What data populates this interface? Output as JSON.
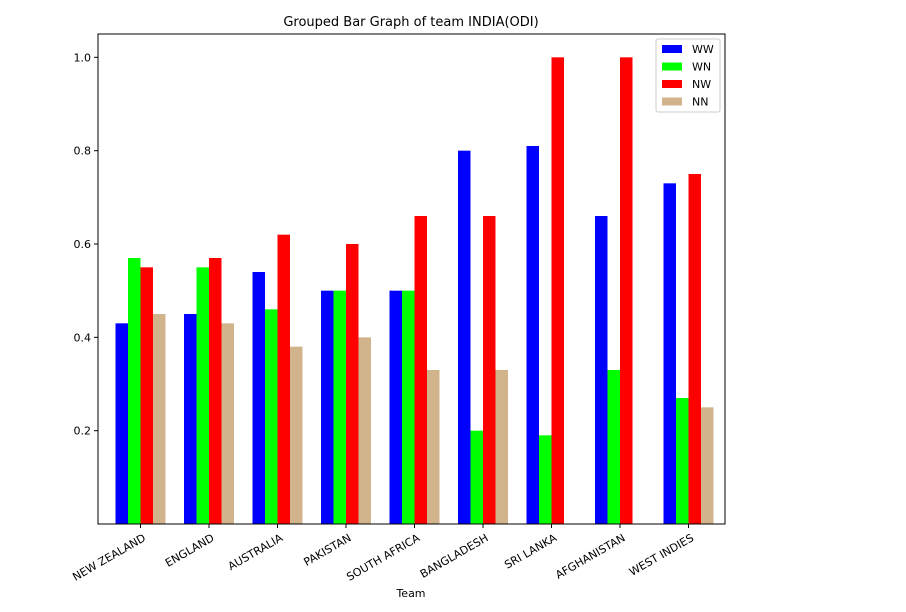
{
  "chart_data": {
    "type": "bar",
    "title": "Grouped Bar Graph of team INDIA(ODI)",
    "xlabel": "Team",
    "ylabel": "",
    "ylim": [
      0.0,
      1.05
    ],
    "yticks": [
      0.2,
      0.4,
      0.6,
      0.8,
      1.0
    ],
    "ytick_labels": [
      "0.2",
      "0.4",
      "0.6",
      "0.8",
      "1.0"
    ],
    "grid": false,
    "legend_position": "top-right",
    "categories": [
      "NEW ZEALAND",
      "ENGLAND",
      "AUSTRALIA",
      "PAKISTAN",
      "SOUTH AFRICA",
      "BANGLADESH",
      "SRI LANKA",
      "AFGHANISTAN",
      "WEST INDIES"
    ],
    "series": [
      {
        "name": "WW",
        "color": "#0000ff",
        "values": [
          0.43,
          0.45,
          0.54,
          0.5,
          0.5,
          0.8,
          0.81,
          0.66,
          0.73
        ]
      },
      {
        "name": "WN",
        "color": "#00ff00",
        "values": [
          0.57,
          0.55,
          0.46,
          0.5,
          0.5,
          0.2,
          0.19,
          0.33,
          0.27
        ]
      },
      {
        "name": "NW",
        "color": "#ff0000",
        "values": [
          0.55,
          0.57,
          0.62,
          0.6,
          0.66,
          0.66,
          1.0,
          1.0,
          0.75
        ]
      },
      {
        "name": "NN",
        "color": "#d2b48c",
        "values": [
          0.45,
          0.43,
          0.38,
          0.4,
          0.33,
          0.33,
          0.0,
          0.0,
          0.25
        ]
      }
    ]
  }
}
